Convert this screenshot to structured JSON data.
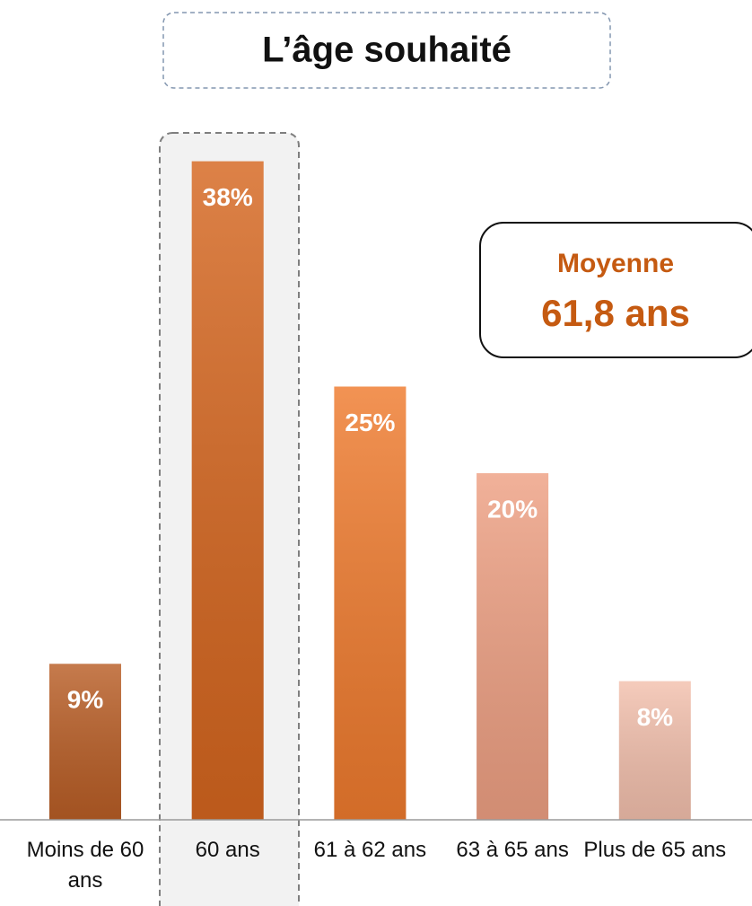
{
  "chart_data": {
    "type": "bar",
    "title": "L’âge souhaité",
    "categories": [
      "Moins de 60 ans",
      "60 ans",
      "61 à 62 ans",
      "63 à 65 ans",
      "Plus de 65 ans"
    ],
    "values": [
      9,
      38,
      25,
      20,
      8
    ],
    "value_labels": [
      "9%",
      "38%",
      "25%",
      "20%",
      "8%"
    ],
    "colors": [
      "#b95e26",
      "#d5661f",
      "#ef7b2e",
      "#eea083",
      "#f3c0ad"
    ],
    "annotation": {
      "title": "Moyenne",
      "value": "61,8 ans"
    }
  }
}
